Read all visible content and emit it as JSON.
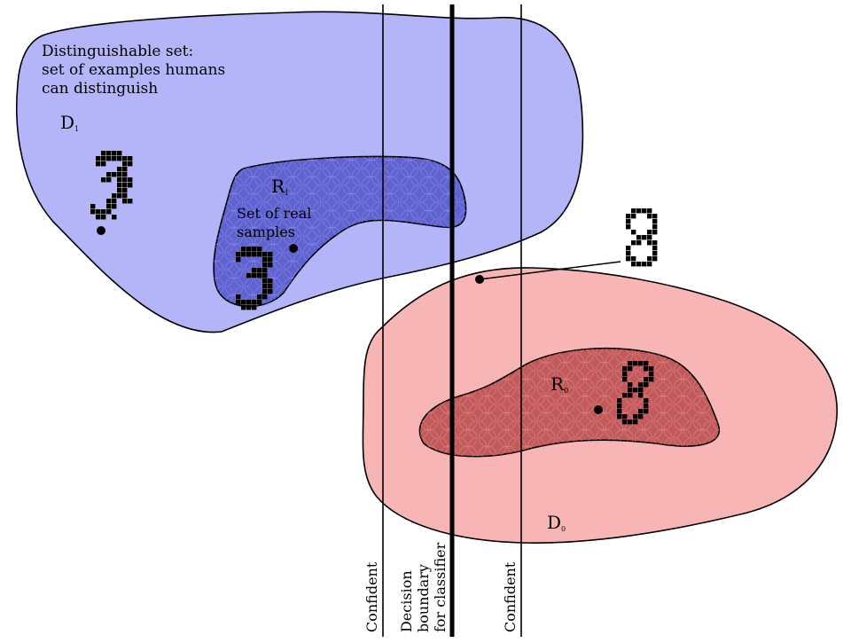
{
  "labels": {
    "distinguishable_1": "Distinguishable set:",
    "distinguishable_2": "set of examples humans",
    "distinguishable_3": "can distinguish",
    "d1": "D",
    "d1_sub": "1",
    "r1": "R",
    "r1_sub": "1",
    "real_1": "Set of real",
    "real_2": "samples",
    "r0": "R",
    "r0_sub": "0",
    "d0": "D",
    "d0_sub": "0",
    "confident_left": "Confident",
    "decision_1": "Decision",
    "decision_2": "boundary",
    "decision_3": "for classifier",
    "confident_right": "Confident"
  },
  "colors": {
    "d1_fill": "#b3b5f8",
    "r1_fill": "#5f62cf",
    "d0_fill": "#f8b5b6",
    "r0_fill": "#c25a5c",
    "ink": "#000000"
  },
  "digits": {
    "three_left": "3",
    "three_inner": "3",
    "eight_outside": "8",
    "eight_inner": "8"
  }
}
